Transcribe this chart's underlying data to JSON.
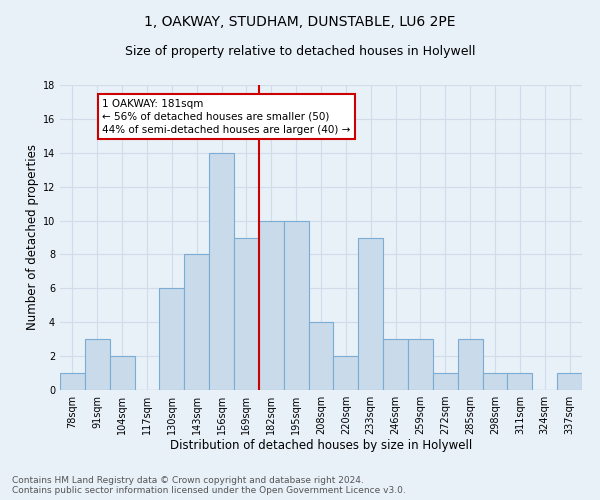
{
  "title": "1, OAKWAY, STUDHAM, DUNSTABLE, LU6 2PE",
  "subtitle": "Size of property relative to detached houses in Holywell",
  "xlabel": "Distribution of detached houses by size in Holywell",
  "ylabel": "Number of detached properties",
  "bar_labels": [
    "78sqm",
    "91sqm",
    "104sqm",
    "117sqm",
    "130sqm",
    "143sqm",
    "156sqm",
    "169sqm",
    "182sqm",
    "195sqm",
    "208sqm",
    "220sqm",
    "233sqm",
    "246sqm",
    "259sqm",
    "272sqm",
    "285sqm",
    "298sqm",
    "311sqm",
    "324sqm",
    "337sqm"
  ],
  "bar_values": [
    1,
    3,
    2,
    0,
    6,
    8,
    14,
    9,
    10,
    10,
    4,
    2,
    9,
    3,
    3,
    1,
    3,
    1,
    1,
    0,
    1
  ],
  "bar_color": "#c9daea",
  "bar_edge_color": "#7bacd4",
  "background_color": "#e8f0f8",
  "grid_color": "#d0dde8",
  "annotation_text_line1": "1 OAKWAY: 181sqm",
  "annotation_text_line2": "← 56% of detached houses are smaller (50)",
  "annotation_text_line3": "44% of semi-detached houses are larger (40) →",
  "annotation_box_color": "#ffffff",
  "annotation_line_color": "#cc0000",
  "footer_line1": "Contains HM Land Registry data © Crown copyright and database right 2024.",
  "footer_line2": "Contains public sector information licensed under the Open Government Licence v3.0.",
  "ylim": [
    0,
    18
  ],
  "yticks": [
    0,
    2,
    4,
    6,
    8,
    10,
    12,
    14,
    16,
    18
  ],
  "title_fontsize": 10,
  "subtitle_fontsize": 9,
  "axis_label_fontsize": 8.5,
  "tick_fontsize": 7,
  "footer_fontsize": 6.5,
  "annotation_fontsize": 7.5
}
